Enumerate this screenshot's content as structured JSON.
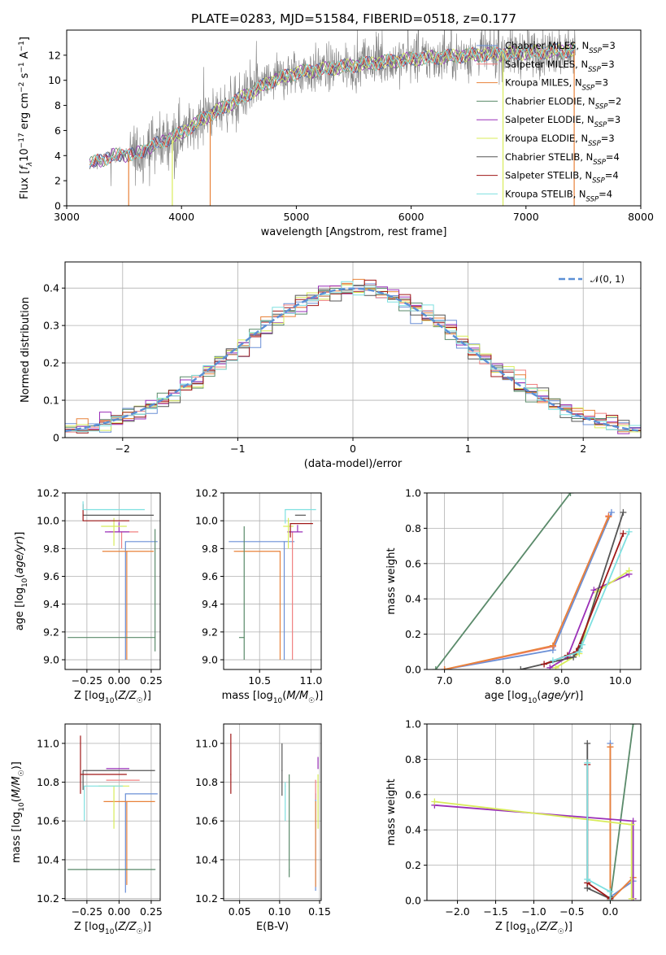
{
  "title": "PLATE=0283, MJD=51584, FIBERID=0518, z=0.177",
  "models": [
    {
      "name": "Chabrier MILES, N_{SSP}=3",
      "pre": "Chabrier MILES, N",
      "sub": "SSP",
      "post": "=3",
      "color": "#6a8fd6"
    },
    {
      "name": "Salpeter MILES, N_{SSP}=3",
      "pre": "Salpeter MILES, N",
      "sub": "SSP",
      "post": "=3",
      "color": "#f08080"
    },
    {
      "name": "Kroupa MILES, N_{SSP}=3",
      "pre": "Kroupa MILES, N",
      "sub": "SSP",
      "post": "=3",
      "color": "#e8823a"
    },
    {
      "name": "Chabrier ELODIE, N_{SSP}=2",
      "pre": "Chabrier ELODIE, N",
      "sub": "SSP",
      "post": "=2",
      "color": "#5a8a6a"
    },
    {
      "name": "Salpeter ELODIE, N_{SSP}=3",
      "pre": "Salpeter ELODIE, N",
      "sub": "SSP",
      "post": "=3",
      "color": "#9a2fb8"
    },
    {
      "name": "Kroupa ELODIE, N_{SSP}=3",
      "pre": "Kroupa ELODIE, N",
      "sub": "SSP",
      "post": "=3",
      "color": "#d8ec5a"
    },
    {
      "name": "Chabrier STELIB, N_{SSP}=4",
      "pre": "Chabrier STELIB, N",
      "sub": "SSP",
      "post": "=4",
      "color": "#555555"
    },
    {
      "name": "Salpeter STELIB, N_{SSP}=4",
      "pre": "Salpeter STELIB, N",
      "sub": "SSP",
      "post": "=4",
      "color": "#a01818"
    },
    {
      "name": "Kroupa STELIB, N_{SSP}=4",
      "pre": "Kroupa STELIB, N",
      "sub": "SSP",
      "post": "=4",
      "color": "#7ee0e0"
    }
  ],
  "chart_data": [
    {
      "id": "spectrum",
      "type": "line",
      "xlabel": "wavelength [Angstrom, rest frame]",
      "ylabel": "Flux [f_λ10^{-17} erg cm^{-2} s^{-1} A^{-1}]",
      "xlim": [
        3000,
        8000
      ],
      "ylim": [
        0,
        14
      ],
      "xticks": [
        3000,
        4000,
        5000,
        6000,
        7000,
        8000
      ],
      "yticks": [
        0,
        2,
        4,
        6,
        8,
        10,
        12
      ],
      "grid": false,
      "legend": "right",
      "data_color": "#808080",
      "continuum": [
        [
          3200,
          3.3
        ],
        [
          3400,
          4.0
        ],
        [
          3600,
          4.1
        ],
        [
          3800,
          5.0
        ],
        [
          4000,
          5.8
        ],
        [
          4200,
          7.0
        ],
        [
          4500,
          8.5
        ],
        [
          4800,
          10.0
        ],
        [
          5000,
          10.6
        ],
        [
          5500,
          11.2
        ],
        [
          6000,
          11.7
        ],
        [
          6500,
          12.0
        ],
        [
          7000,
          12.2
        ],
        [
          7400,
          12.4
        ]
      ]
    },
    {
      "id": "residuals",
      "type": "histogram",
      "xlabel": "(data-model)/error",
      "ylabel": "Normed distribution",
      "xlim": [
        -2.5,
        2.5
      ],
      "ylim": [
        0,
        0.47
      ],
      "xticks": [
        -2,
        -1,
        0,
        1,
        2
      ],
      "yticks": [
        0.0,
        0.1,
        0.2,
        0.3,
        0.4
      ],
      "grid": true,
      "legend": "top-right",
      "reference": {
        "label": "𝒩(0, 1)",
        "mean": 0,
        "sigma": 1,
        "color": "#5b8fd6"
      }
    },
    {
      "id": "age_vs_z",
      "type": "errorbar",
      "xlabel": "Z [log10(Z/Z☉)]",
      "ylabel": "age [log10(age/yr)]",
      "xlim": [
        -0.42,
        0.32
      ],
      "ylim": [
        8.93,
        10.2
      ],
      "xticks": [
        -0.25,
        0.0,
        0.25
      ],
      "yticks": [
        9.0,
        9.2,
        9.4,
        9.6,
        9.8,
        10.0,
        10.2
      ],
      "grid": true,
      "points": [
        {
          "model": 0,
          "x": 0.05,
          "xerr": [
            0.0,
            0.25
          ],
          "y": 9.85,
          "yerr": [
            0.85,
            0.0
          ]
        },
        {
          "model": 1,
          "x": 0.02,
          "xerr": [
            0.1,
            0.13
          ],
          "y": 9.92,
          "yerr": [
            0.12,
            0.0
          ]
        },
        {
          "model": 2,
          "x": 0.06,
          "xerr": [
            0.19,
            0.21
          ],
          "y": 9.78,
          "yerr": [
            0.78,
            0.0
          ]
        },
        {
          "model": 3,
          "x": 0.28,
          "xerr": [
            0.68,
            0.0
          ],
          "y": 9.16,
          "yerr": [
            0.1,
            0.78
          ]
        },
        {
          "model": 4,
          "x": 0.0,
          "xerr": [
            0.11,
            0.08
          ],
          "y": 9.92,
          "yerr": [
            0.0,
            0.07
          ]
        },
        {
          "model": 5,
          "x": -0.04,
          "xerr": [
            0.1,
            0.1
          ],
          "y": 9.96,
          "yerr": [
            0.14,
            0.06
          ]
        },
        {
          "model": 6,
          "x": -0.28,
          "xerr": [
            0.0,
            0.55
          ],
          "y": 10.04,
          "yerr": [
            0.0,
            0.0
          ]
        },
        {
          "model": 7,
          "x": -0.28,
          "xerr": [
            0.0,
            0.36
          ],
          "y": 10.0,
          "yerr": [
            0.0,
            0.12
          ]
        },
        {
          "model": 8,
          "x": -0.28,
          "xerr": [
            0.0,
            0.48
          ],
          "y": 10.08,
          "yerr": [
            0.0,
            0.06
          ]
        }
      ]
    },
    {
      "id": "age_vs_mass",
      "type": "errorbar",
      "xlabel": "mass [log10(M/M☉)]",
      "ylabel": "",
      "xlim": [
        10.15,
        11.1
      ],
      "ylim": [
        8.93,
        10.2
      ],
      "xticks": [
        10.5,
        11.0
      ],
      "yticks": [
        9.0,
        9.2,
        9.4,
        9.6,
        9.8,
        10.0,
        10.2
      ],
      "grid": true,
      "points": [
        {
          "model": 0,
          "x": 10.74,
          "xerr": [
            0.54,
            0.1
          ],
          "y": 9.85,
          "yerr": [
            0.85,
            0.0
          ]
        },
        {
          "model": 1,
          "x": 10.82,
          "xerr": [
            0.0,
            0.0
          ],
          "y": 9.92,
          "yerr": [
            0.92,
            0.0
          ]
        },
        {
          "model": 2,
          "x": 10.7,
          "xerr": [
            0.45,
            0.0
          ],
          "y": 9.78,
          "yerr": [
            0.78,
            0.0
          ]
        },
        {
          "model": 3,
          "x": 10.35,
          "xerr": [
            0.05,
            0.0
          ],
          "y": 9.16,
          "yerr": [
            0.16,
            0.8
          ]
        },
        {
          "model": 4,
          "x": 10.87,
          "xerr": [
            0.1,
            0.05
          ],
          "y": 9.92,
          "yerr": [
            0.0,
            0.05
          ]
        },
        {
          "model": 5,
          "x": 10.78,
          "xerr": [
            0.05,
            0.05
          ],
          "y": 9.96,
          "yerr": [
            0.16,
            0.06
          ]
        },
        {
          "model": 6,
          "x": 10.85,
          "xerr": [
            0.0,
            0.1
          ],
          "y": 10.04,
          "yerr": [
            0.0,
            0.0
          ]
        },
        {
          "model": 7,
          "x": 10.8,
          "xerr": [
            0.0,
            0.22
          ],
          "y": 9.98,
          "yerr": [
            0.1,
            0.0
          ]
        },
        {
          "model": 8,
          "x": 10.75,
          "xerr": [
            0.0,
            0.3
          ],
          "y": 10.08,
          "yerr": [
            0.1,
            0.0
          ]
        }
      ]
    },
    {
      "id": "mass_weight_vs_age",
      "type": "line",
      "xlabel": "age [log10(age/yr)]",
      "ylabel": "mass weight",
      "xlim": [
        6.7,
        10.35
      ],
      "ylim": [
        0,
        1
      ],
      "xticks": [
        7,
        8,
        9,
        10
      ],
      "yticks": [
        0.0,
        0.2,
        0.4,
        0.6,
        0.8,
        1.0
      ],
      "grid": true,
      "series": [
        {
          "model": 0,
          "x": [
            7.0,
            8.85,
            9.85
          ],
          "y": [
            0.0,
            0.11,
            0.89
          ]
        },
        {
          "model": 1,
          "x": [
            7.0,
            8.85,
            9.8
          ],
          "y": [
            0.0,
            0.13,
            0.87
          ]
        },
        {
          "model": 2,
          "x": [
            7.0,
            8.85,
            9.8
          ],
          "y": [
            0.0,
            0.135,
            0.865
          ]
        },
        {
          "model": 3,
          "x": [
            6.85,
            9.15
          ],
          "y": [
            0.0,
            1.0
          ]
        },
        {
          "model": 4,
          "x": [
            8.8,
            9.1,
            9.55,
            10.15
          ],
          "y": [
            0.01,
            0.07,
            0.45,
            0.54
          ]
        },
        {
          "model": 5,
          "x": [
            8.9,
            9.3,
            9.6,
            10.15
          ],
          "y": [
            0.01,
            0.09,
            0.44,
            0.56
          ]
        },
        {
          "model": 6,
          "x": [
            8.3,
            9.2,
            9.3,
            10.05
          ],
          "y": [
            0.0,
            0.07,
            0.12,
            0.89
          ]
        },
        {
          "model": 7,
          "x": [
            8.7,
            9.1,
            9.25,
            10.05
          ],
          "y": [
            0.03,
            0.08,
            0.1,
            0.77
          ]
        },
        {
          "model": 8,
          "x": [
            8.85,
            9.3,
            9.35,
            10.15
          ],
          "y": [
            0.05,
            0.1,
            0.14,
            0.78
          ]
        }
      ]
    },
    {
      "id": "mass_vs_z",
      "type": "errorbar",
      "xlabel": "Z [log10(Z/Z☉)]",
      "ylabel": "mass [log10(M/M☉)]",
      "xlim": [
        -0.42,
        0.32
      ],
      "ylim": [
        10.19,
        11.1
      ],
      "xticks": [
        -0.25,
        0.0,
        0.25
      ],
      "yticks": [
        10.2,
        10.4,
        10.6,
        10.8,
        11.0
      ],
      "grid": true,
      "points": [
        {
          "model": 0,
          "x": 0.05,
          "xerr": [
            0.0,
            0.25
          ],
          "y": 10.74,
          "yerr": [
            0.51,
            0.0
          ]
        },
        {
          "model": 1,
          "x": 0.02,
          "xerr": [
            0.12,
            0.14
          ],
          "y": 10.81,
          "yerr": [
            0.0,
            0.0
          ]
        },
        {
          "model": 2,
          "x": 0.06,
          "xerr": [
            0.18,
            0.22
          ],
          "y": 10.7,
          "yerr": [
            0.43,
            0.0
          ]
        },
        {
          "model": 3,
          "x": 0.28,
          "xerr": [
            0.68,
            0.0
          ],
          "y": 10.35,
          "yerr": [
            0.0,
            0.0
          ]
        },
        {
          "model": 4,
          "x": 0.0,
          "xerr": [
            0.1,
            0.08
          ],
          "y": 10.87,
          "yerr": [
            0.0,
            0.0
          ]
        },
        {
          "model": 5,
          "x": -0.04,
          "xerr": [
            0.12,
            0.12
          ],
          "y": 10.78,
          "yerr": [
            0.22,
            0.0
          ]
        },
        {
          "model": 6,
          "x": -0.28,
          "xerr": [
            0.0,
            0.56
          ],
          "y": 10.86,
          "yerr": [
            0.1,
            0.0
          ]
        },
        {
          "model": 7,
          "x": -0.3,
          "xerr": [
            0.0,
            0.36
          ],
          "y": 10.84,
          "yerr": [
            0.1,
            0.2
          ]
        },
        {
          "model": 8,
          "x": -0.27,
          "xerr": [
            0.0,
            0.3
          ],
          "y": 10.78,
          "yerr": [
            0.18,
            0.0
          ]
        }
      ]
    },
    {
      "id": "mass_vs_ebv",
      "type": "errorbar",
      "xlabel": "E(B-V)",
      "ylabel": "",
      "xlim": [
        0.03,
        0.152
      ],
      "ylim": [
        10.19,
        11.1
      ],
      "xticks": [
        0.05,
        0.1,
        0.15
      ],
      "yticks": [
        10.2,
        10.4,
        10.6,
        10.8,
        11.0
      ],
      "grid": true,
      "points": [
        {
          "model": 0,
          "x": 0.145,
          "xerr": [
            0,
            0
          ],
          "y": 10.74,
          "yerr": [
            0.5,
            0.0
          ]
        },
        {
          "model": 1,
          "x": 0.145,
          "xerr": [
            0,
            0
          ],
          "y": 10.81,
          "yerr": [
            0.1,
            0.0
          ]
        },
        {
          "model": 2,
          "x": 0.145,
          "xerr": [
            0,
            0
          ],
          "y": 10.7,
          "yerr": [
            0.44,
            0.0
          ]
        },
        {
          "model": 3,
          "x": 0.112,
          "xerr": [
            0,
            0
          ],
          "y": 10.35,
          "yerr": [
            0.04,
            0.49
          ]
        },
        {
          "model": 4,
          "x": 0.148,
          "xerr": [
            0,
            0
          ],
          "y": 10.87,
          "yerr": [
            0.0,
            0.06
          ]
        },
        {
          "model": 5,
          "x": 0.148,
          "xerr": [
            0,
            0
          ],
          "y": 10.78,
          "yerr": [
            0.22,
            0.06
          ]
        },
        {
          "model": 6,
          "x": 0.103,
          "xerr": [
            0,
            0
          ],
          "y": 10.86,
          "yerr": [
            0.13,
            0.14
          ]
        },
        {
          "model": 7,
          "x": 0.039,
          "xerr": [
            0,
            0
          ],
          "y": 10.84,
          "yerr": [
            0.1,
            0.21
          ]
        },
        {
          "model": 8,
          "x": 0.107,
          "xerr": [
            0,
            0
          ],
          "y": 10.78,
          "yerr": [
            0.18,
            0.02
          ]
        }
      ]
    },
    {
      "id": "mass_weight_vs_z",
      "type": "line",
      "xlabel": "Z [log10(Z/Z☉)]",
      "ylabel": "mass weight",
      "xlim": [
        -2.4,
        0.4
      ],
      "ylim": [
        0,
        1
      ],
      "xticks": [
        -2.0,
        -1.5,
        -1.0,
        -0.5,
        0.0
      ],
      "yticks": [
        0.0,
        0.2,
        0.4,
        0.6,
        0.8,
        1.0
      ],
      "grid": true,
      "series": [
        {
          "model": 0,
          "x": [
            0.0,
            0.0,
            0.3
          ],
          "y": [
            0.89,
            0.02,
            0.11
          ]
        },
        {
          "model": 1,
          "x": [
            0.0,
            0.0,
            0.3
          ],
          "y": [
            0.87,
            0.0,
            0.13
          ]
        },
        {
          "model": 2,
          "x": [
            0.0,
            0.0,
            0.3
          ],
          "y": [
            0.87,
            0.0,
            0.13
          ]
        },
        {
          "model": 3,
          "x": [
            0.0,
            0.3
          ],
          "y": [
            0.0,
            1.0
          ]
        },
        {
          "model": 4,
          "x": [
            -2.3,
            0.3,
            0.3
          ],
          "y": [
            0.54,
            0.45,
            0.01
          ]
        },
        {
          "model": 5,
          "x": [
            -2.3,
            0.28,
            0.28
          ],
          "y": [
            0.56,
            0.43,
            0.01
          ]
        },
        {
          "model": 6,
          "x": [
            -0.3,
            -0.3,
            0.0,
            0.0
          ],
          "y": [
            0.89,
            0.07,
            0.01,
            0.02
          ]
        },
        {
          "model": 7,
          "x": [
            -0.3,
            -0.3,
            0.0
          ],
          "y": [
            0.77,
            0.1,
            0.01
          ]
        },
        {
          "model": 8,
          "x": [
            -0.3,
            -0.3,
            0.0,
            0.0
          ],
          "y": [
            0.78,
            0.12,
            0.05,
            0.0
          ]
        }
      ]
    }
  ]
}
